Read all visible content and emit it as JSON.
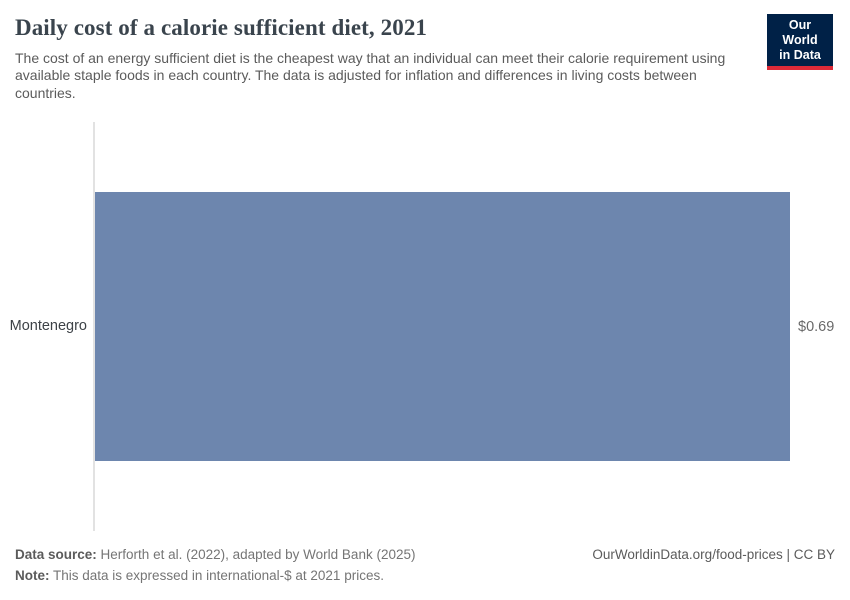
{
  "header": {
    "title": "Daily cost of a calorie sufficient diet, 2021",
    "subtitle": "The cost of an energy sufficient diet is the cheapest way that an individual can meet their calorie requirement using available staple foods in each country. The data is adjusted for inflation and differences in living costs between countries."
  },
  "logo": {
    "line1": "Our World",
    "line2": "in Data",
    "bg_color": "#002147",
    "accent_color": "#dc2a38"
  },
  "chart_data": {
    "type": "bar",
    "orientation": "horizontal",
    "title": "Daily cost of a calorie sufficient diet, 2021",
    "categories": [
      "Montenegro"
    ],
    "values": [
      0.69
    ],
    "value_labels": [
      "$0.69"
    ],
    "unit": "international-$ at 2021 prices",
    "xlabel": "",
    "ylabel": "",
    "xlim": [
      0,
      0.69
    ],
    "grid": false,
    "legend": "none",
    "bar_color": "#6d86ae",
    "axis_line_color": "#e2e2e2"
  },
  "footer": {
    "data_source_label": "Data source:",
    "data_source_text": "Herforth et al. (2022), adapted by World Bank (2025)",
    "note_label": "Note:",
    "note_text": "This data is expressed in international-$ at 2021 prices.",
    "right_text": "OurWorldinData.org/food-prices | CC BY"
  }
}
